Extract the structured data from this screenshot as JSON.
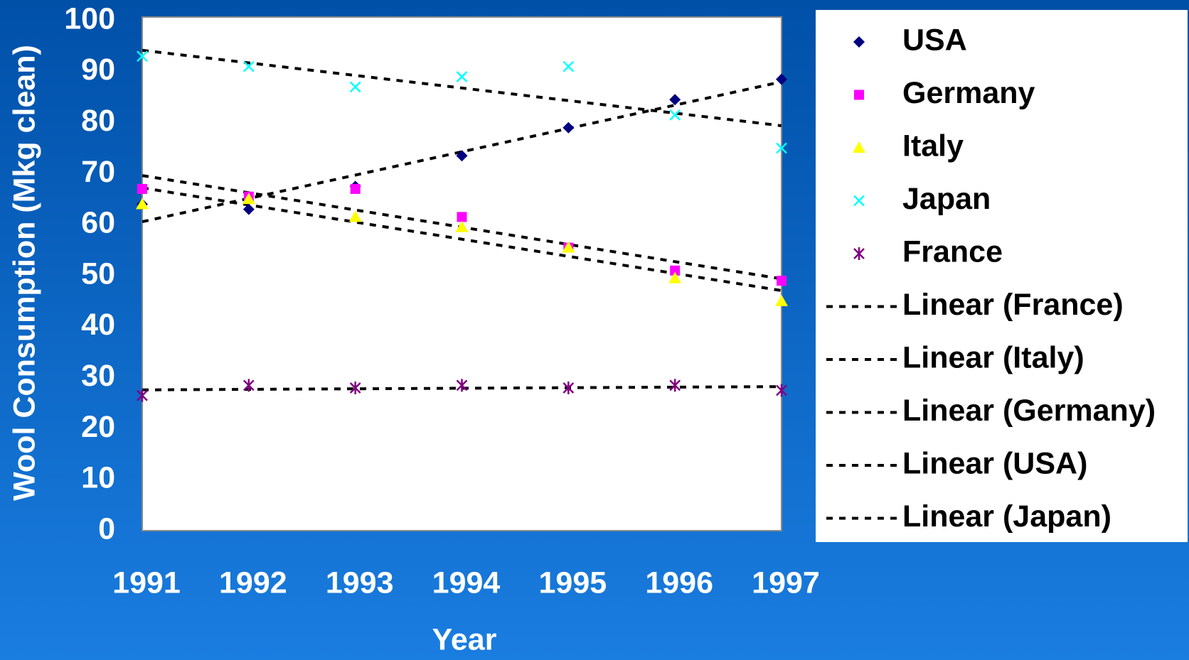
{
  "chart_data": {
    "type": "scatter",
    "ylabel": "Wool Consumption (Mkg clean)",
    "xlabel": "Year",
    "x": [
      1991,
      1992,
      1993,
      1994,
      1995,
      1996,
      1997
    ],
    "xlim": [
      1991,
      1997
    ],
    "xticks": [
      1991,
      1992,
      1993,
      1994,
      1995,
      1996,
      1997
    ],
    "ylim": [
      0,
      100
    ],
    "yticks": [
      0,
      10,
      20,
      30,
      40,
      50,
      60,
      70,
      80,
      90,
      100
    ],
    "series": [
      {
        "name": "USA",
        "color": "#000080",
        "marker": "diamond",
        "trendline": "Linear (USA)",
        "values": [
          64,
          63,
          67.5,
          73.5,
          79,
          84.5,
          88.5
        ]
      },
      {
        "name": "Germany",
        "color": "#ff00ff",
        "marker": "square",
        "trendline": "Linear (Germany)",
        "values": [
          67,
          65.5,
          67,
          61.5,
          55.5,
          51,
          49
        ]
      },
      {
        "name": "Italy",
        "color": "#ffff00",
        "marker": "triangle",
        "trendline": "Linear (Italy)",
        "values": [
          64,
          65,
          61.5,
          59.5,
          55.5,
          49.5,
          45
        ]
      },
      {
        "name": "Japan",
        "color": "#00ffff",
        "marker": "x",
        "trendline": "Linear (Japan)",
        "values": [
          93,
          91,
          87,
          89,
          91,
          81.5,
          75
        ]
      },
      {
        "name": "France",
        "color": "#800080",
        "marker": "star",
        "trendline": "Linear (France)",
        "values": [
          26.5,
          28.5,
          28,
          28.5,
          28,
          28.5,
          27.5
        ]
      }
    ]
  }
}
